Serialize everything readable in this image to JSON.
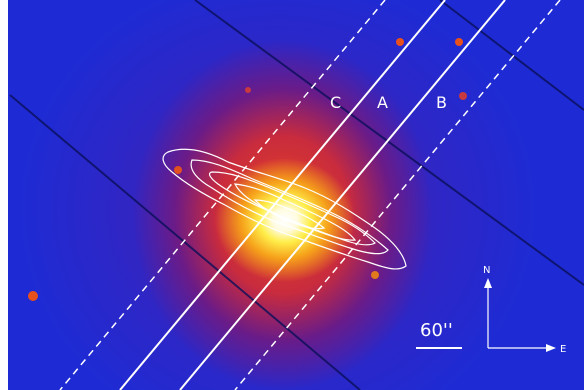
{
  "labels": {
    "slit_c": "C",
    "slit_a": "A",
    "slit_b": "B",
    "scale_bar": "60''",
    "north": "N",
    "east": "E"
  },
  "colors": {
    "background": "#1e2bd4",
    "core": "#ffffff",
    "contours": "#ffffff",
    "slits": "#ffffff"
  }
}
